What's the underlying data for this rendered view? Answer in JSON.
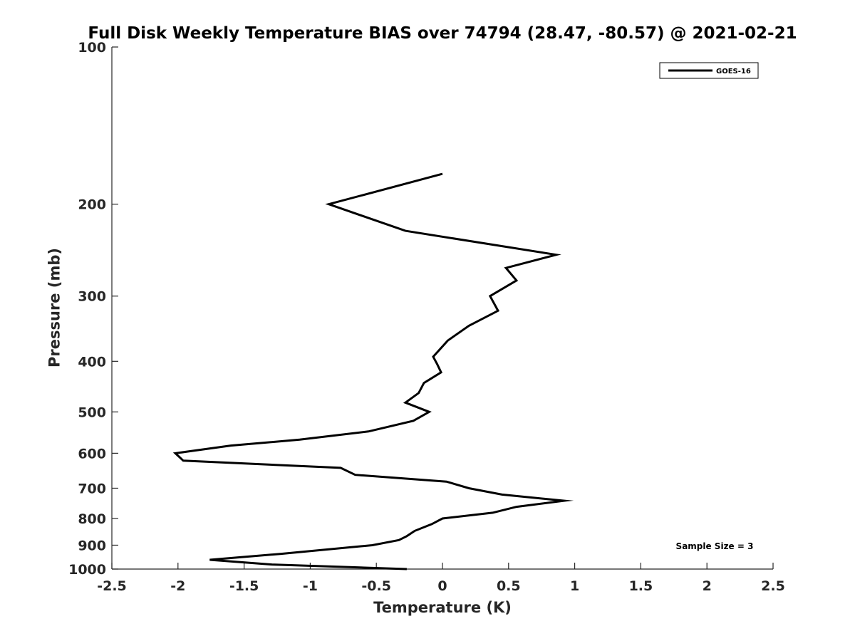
{
  "chart_data": {
    "type": "line",
    "title": "Full Disk Weekly Temperature BIAS over 74794 (28.47, -80.57) @ 2021-02-21",
    "xlabel": "Temperature (K)",
    "ylabel": "Pressure (mb)",
    "xlim": [
      -2.5,
      2.5
    ],
    "ylim": [
      1000,
      100
    ],
    "yscale": "log",
    "xticks": [
      -2.5,
      -2,
      -1.5,
      -1,
      -0.5,
      0,
      0.5,
      1,
      1.5,
      2,
      2.5
    ],
    "xtick_labels": [
      "-2.5",
      "-2",
      "-1.5",
      "-1",
      "-0.5",
      "0",
      "0.5",
      "1",
      "1.5",
      "2",
      "2.5"
    ],
    "yticks": [
      100,
      200,
      300,
      400,
      500,
      600,
      700,
      800,
      900,
      1000
    ],
    "ytick_labels": [
      "100",
      "200",
      "300",
      "400",
      "500",
      "600",
      "700",
      "800",
      "900",
      "1000"
    ],
    "grid": false,
    "legend": {
      "placement": "top-right",
      "entries": [
        "GOES-16"
      ]
    },
    "annotation": "Sample Size = 3",
    "series": [
      {
        "name": "GOES-16",
        "color": "#000000",
        "points": [
          {
            "x": 0.0,
            "p": 175
          },
          {
            "x": -0.86,
            "p": 200
          },
          {
            "x": -0.28,
            "p": 225
          },
          {
            "x": 0.86,
            "p": 250
          },
          {
            "x": 0.48,
            "p": 265
          },
          {
            "x": 0.56,
            "p": 280
          },
          {
            "x": 0.36,
            "p": 300
          },
          {
            "x": 0.42,
            "p": 320
          },
          {
            "x": 0.2,
            "p": 342
          },
          {
            "x": 0.04,
            "p": 365
          },
          {
            "x": -0.07,
            "p": 392
          },
          {
            "x": -0.04,
            "p": 405
          },
          {
            "x": -0.01,
            "p": 420
          },
          {
            "x": -0.14,
            "p": 440
          },
          {
            "x": -0.18,
            "p": 460
          },
          {
            "x": -0.28,
            "p": 480
          },
          {
            "x": -0.1,
            "p": 500
          },
          {
            "x": -0.22,
            "p": 520
          },
          {
            "x": -0.56,
            "p": 545
          },
          {
            "x": -1.08,
            "p": 565
          },
          {
            "x": -1.6,
            "p": 580
          },
          {
            "x": -2.02,
            "p": 600
          },
          {
            "x": -1.96,
            "p": 620
          },
          {
            "x": -0.77,
            "p": 640
          },
          {
            "x": -0.66,
            "p": 660
          },
          {
            "x": 0.03,
            "p": 680
          },
          {
            "x": 0.2,
            "p": 700
          },
          {
            "x": 0.45,
            "p": 720
          },
          {
            "x": 0.92,
            "p": 740
          },
          {
            "x": 0.56,
            "p": 760
          },
          {
            "x": 0.38,
            "p": 780
          },
          {
            "x": 0.0,
            "p": 800
          },
          {
            "x": -0.08,
            "p": 820
          },
          {
            "x": -0.21,
            "p": 845
          },
          {
            "x": -0.27,
            "p": 865
          },
          {
            "x": -0.33,
            "p": 880
          },
          {
            "x": -0.53,
            "p": 900
          },
          {
            "x": -1.22,
            "p": 935
          },
          {
            "x": -1.76,
            "p": 960
          },
          {
            "x": -1.29,
            "p": 980
          },
          {
            "x": -0.27,
            "p": 1000
          }
        ]
      }
    ]
  }
}
